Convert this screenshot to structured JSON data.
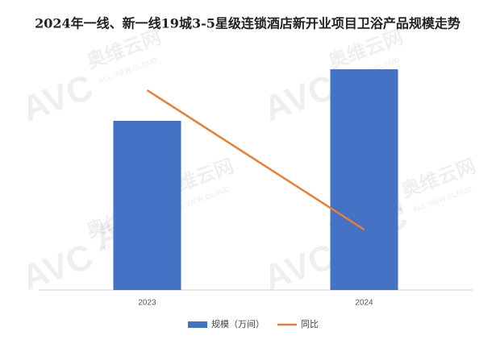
{
  "chart_data": {
    "type": "bar",
    "title": "2024年一线、新一线19城3-5星级连锁酒店新开业项目卫浴产品规模走势",
    "categories": [
      "2023",
      "2024"
    ],
    "series": [
      {
        "name": "规模（万间）",
        "color": "#4472c4",
        "values": [
          210,
          274
        ]
      },
      {
        "name": "同比",
        "color": "#ed7d31",
        "type": "line",
        "axis": "y2",
        "values": [
          248,
          75
        ]
      }
    ],
    "ylim": [
      0,
      300
    ],
    "y2lim": [
      0,
      300
    ],
    "grid": false,
    "legend": "bottom",
    "watermark": [
      "AVC",
      "奥维云网",
      "ALL VIEW CLOUD"
    ]
  }
}
